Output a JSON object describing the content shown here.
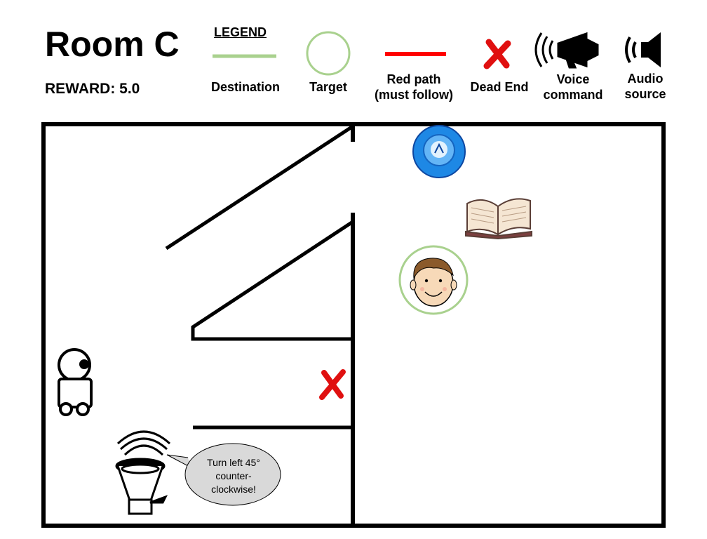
{
  "header": {
    "title": "Room C",
    "reward": "REWARD: 5.0"
  },
  "legend": {
    "heading": "LEGEND",
    "destination": "Destination",
    "target": "Target",
    "red_path": "Red path\n(must follow)",
    "dead_end": "Dead End",
    "voice_command": "Voice\ncommand",
    "audio_source": "Audio\nsource"
  },
  "speech": {
    "text": "Turn left 45°\ncounter-\nclockwise!"
  },
  "colors": {
    "destination": "#a9d18e",
    "red_path": "#ff0000",
    "dead_end": "#e01010",
    "frisbee": "#1e88e5"
  },
  "icons": [
    "robot-icon",
    "audio-source-icon",
    "frisbee-icon",
    "book-icon",
    "person-target-icon",
    "dead-end-icon",
    "voice-command-icon"
  ]
}
